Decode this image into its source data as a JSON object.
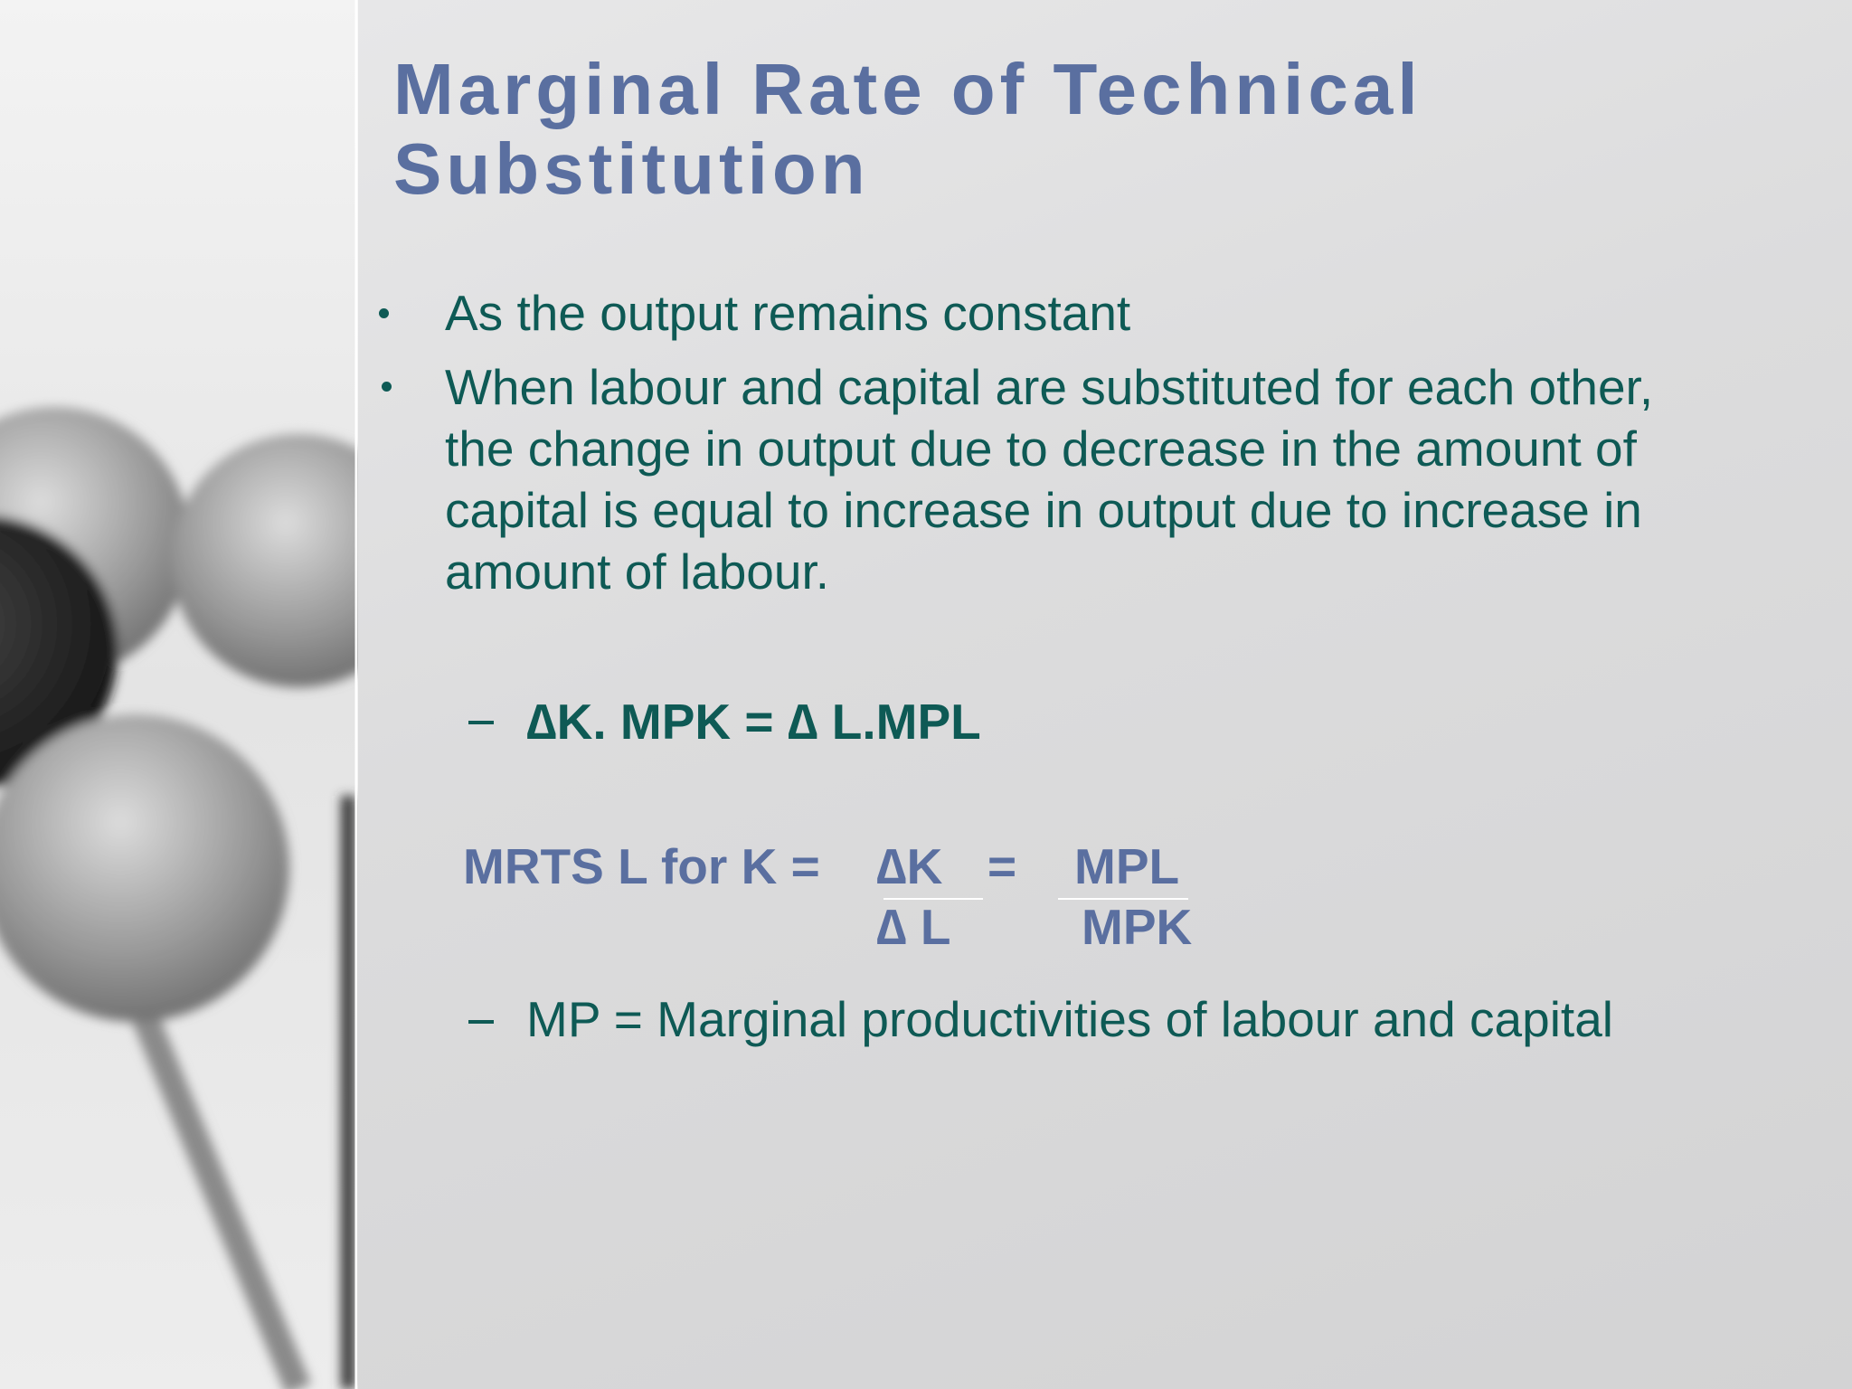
{
  "title": "Marginal Rate of Technical Substitution",
  "bullets": [
    "As the output remains constant",
    "When labour and capital are substituted for each other, the change in output due to decrease in the amount of capital is equal to increase in output due to increase in amount of labour."
  ],
  "formula": "∆K. MPK = ∆ L.MPL",
  "mrts": {
    "label": "MRTS L for K =",
    "numerator_left": "∆K",
    "equals": "=",
    "numerator_right": "MPL",
    "denominator_left": "∆ L",
    "denominator_right": "MPK"
  },
  "note": "MP = Marginal productivities of labour and capital"
}
